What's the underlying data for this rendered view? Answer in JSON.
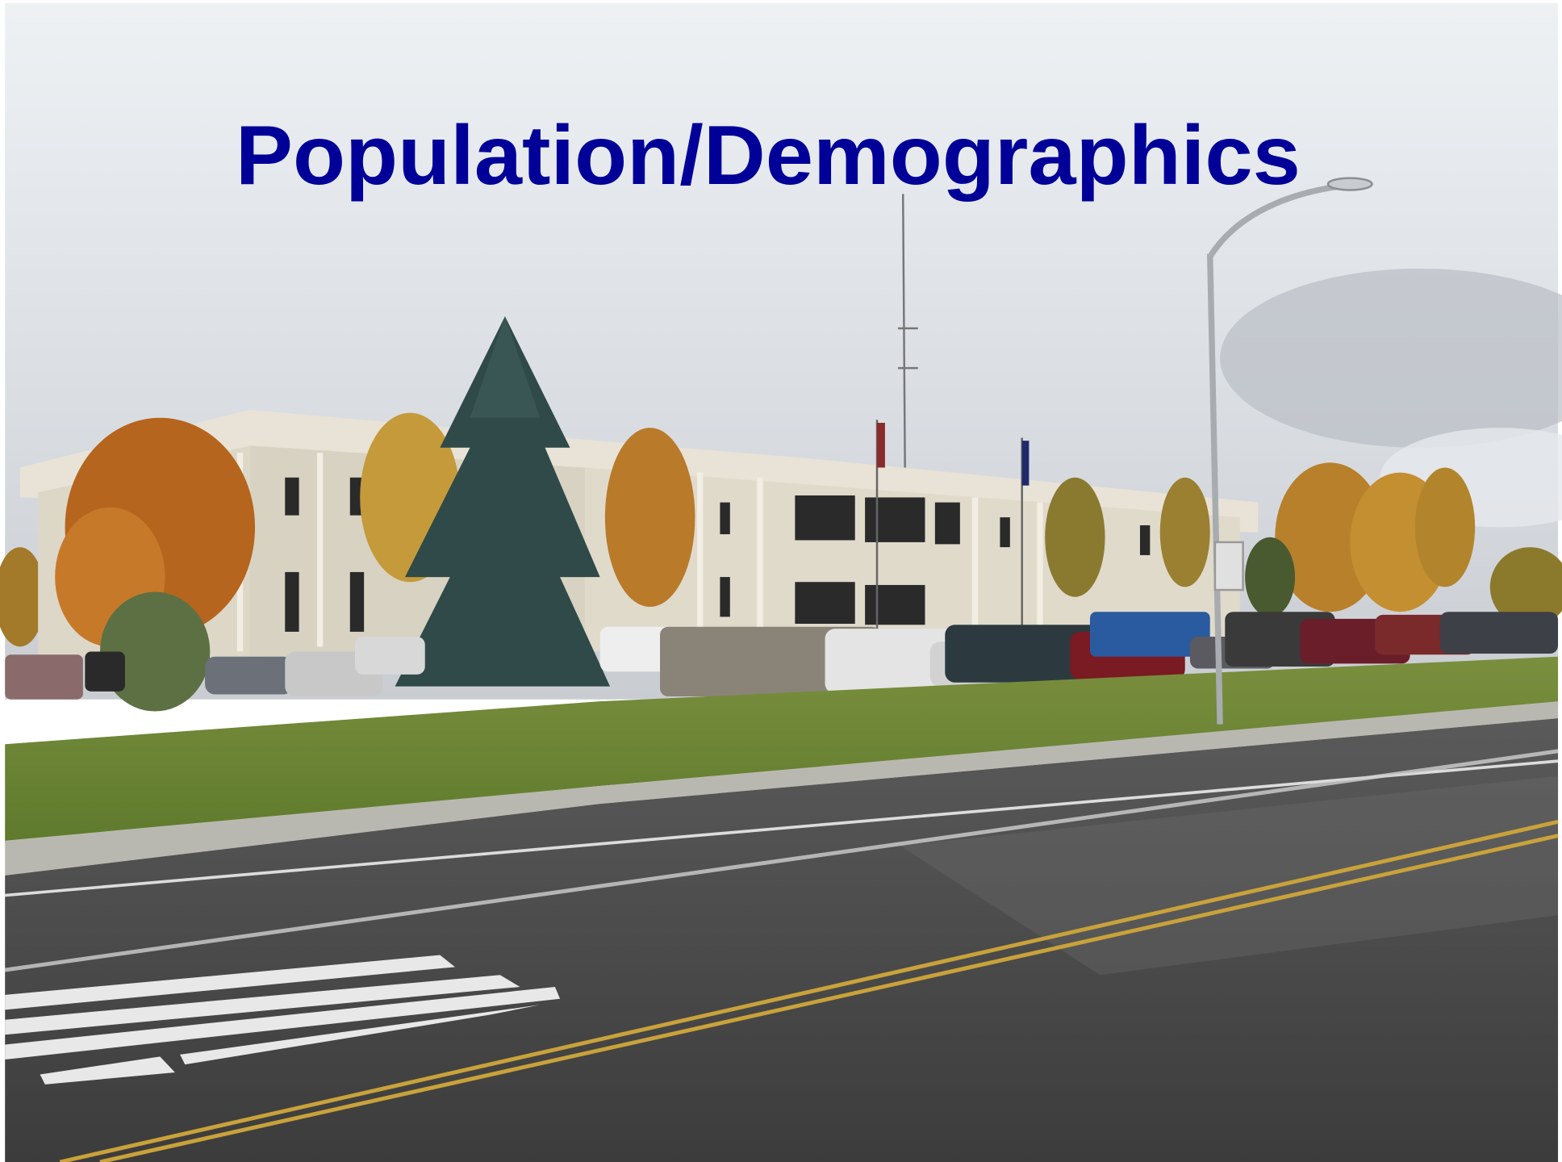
{
  "title": "Population/Demographics"
}
